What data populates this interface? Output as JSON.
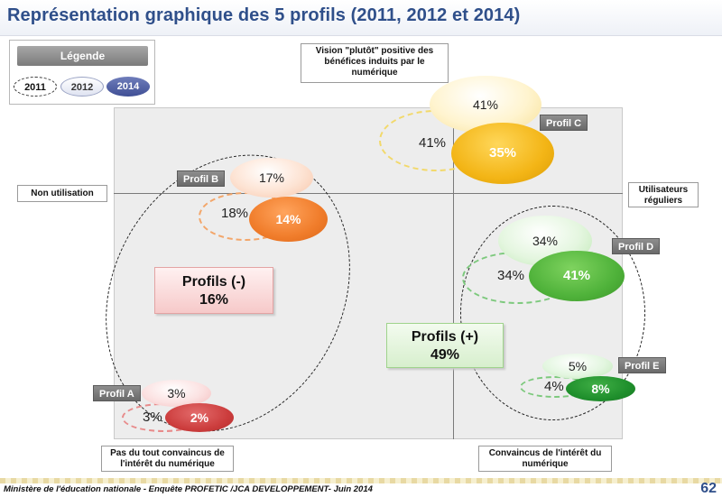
{
  "title": "Représentation graphique des 5 profils (2011, 2012 et 2014)",
  "legend": {
    "title": "Légende",
    "items": [
      {
        "year": "2011",
        "style": "dashed"
      },
      {
        "year": "2012",
        "style": "light"
      },
      {
        "year": "2014",
        "style": "filled"
      }
    ]
  },
  "axis_labels": {
    "left": "Non utilisation",
    "right": "Utilisateurs réguliers",
    "top": "Vision \"plutôt\" positive des bénéfices induits par le numérique",
    "bottom_left": "Pas du tout convaincus de l'intérêt du numérique",
    "bottom_right": "Convaincus de l'intérêt du numérique"
  },
  "profiles": {
    "C": {
      "label": "Profil C",
      "y2011": "41%",
      "y2012": "41%",
      "y2014": "35%",
      "color": "#f3b516"
    },
    "B": {
      "label": "Profil B",
      "y2011": "18%",
      "y2012": "17%",
      "y2014": "14%",
      "color": "#f07c2a"
    },
    "D": {
      "label": "Profil D",
      "y2011": "34%",
      "y2012": "34%",
      "y2014": "41%",
      "color": "#4fb23a"
    },
    "E": {
      "label": "Profil E",
      "y2011": "4%",
      "y2012": "5%",
      "y2014": "8%",
      "color": "#1f8f2c"
    },
    "A": {
      "label": "Profil A",
      "y2011": "3%",
      "y2012": "3%",
      "y2014": "2%",
      "color": "#cc3d3d"
    }
  },
  "groups": {
    "negative": {
      "label": "Profils (-)",
      "value": "16%"
    },
    "positive": {
      "label": "Profils (+)",
      "value": "49%"
    }
  },
  "footer": {
    "text": "Ministère de l'éducation nationale - Enquête PROFETIC /JCA DEVELOPPEMENT- Juin 2014",
    "page": "62"
  }
}
